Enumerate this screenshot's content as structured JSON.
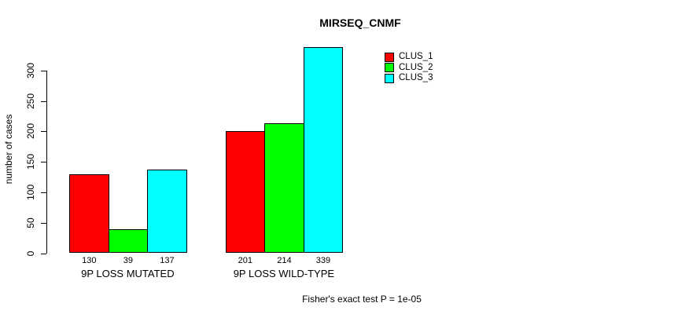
{
  "chart_data": {
    "type": "bar",
    "title": "MIRSEQ_CNMF",
    "xlabel": "",
    "ylabel": "number of cases",
    "categories": [
      "9P LOSS MUTATED",
      "9P LOSS WILD-TYPE"
    ],
    "series": [
      {
        "name": "CLUS_1",
        "color": "#FF0000",
        "values": [
          130,
          201
        ]
      },
      {
        "name": "CLUS_2",
        "color": "#00FF00",
        "values": [
          39,
          214
        ]
      },
      {
        "name": "CLUS_3",
        "color": "#00FFFF",
        "values": [
          137,
          339
        ]
      }
    ],
    "bar_value_labels": [
      [
        130,
        39,
        137
      ],
      [
        201,
        214,
        339
      ]
    ],
    "yticks": [
      0,
      50,
      100,
      150,
      200,
      250,
      300
    ],
    "ylim": [
      0,
      300
    ],
    "grid": false,
    "legend": {
      "position": "top-right"
    },
    "annotation": "Fisher's exact test P = 1e-05"
  }
}
